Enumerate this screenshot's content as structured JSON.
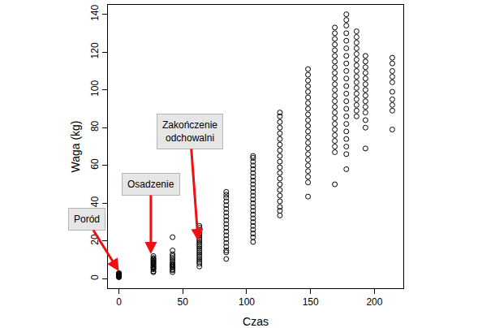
{
  "chart_data": {
    "type": "scatter",
    "x_label": "Czas",
    "y_label": "Waga (kg)",
    "color": "#000000",
    "marker": "open circle",
    "grid": false,
    "xlim": [
      -8.6,
      222.6
    ],
    "ylim": [
      -5,
      145
    ],
    "xticks": [
      0,
      50,
      100,
      150,
      200
    ],
    "yticks": [
      0,
      20,
      40,
      60,
      80,
      100,
      120,
      140
    ],
    "x": [
      0,
      0,
      0,
      0,
      0,
      0,
      0,
      0,
      0,
      0,
      0,
      0,
      27,
      27,
      27,
      27,
      27,
      27,
      27,
      27,
      27,
      27,
      27,
      27,
      27,
      27,
      27,
      27,
      42,
      42,
      42,
      42,
      42,
      42,
      42,
      42,
      42,
      42,
      42,
      42,
      42,
      42,
      42,
      63,
      63,
      63,
      63,
      63,
      63,
      63,
      63,
      63,
      63,
      63,
      63,
      63,
      63,
      63,
      63,
      63,
      63,
      63,
      63,
      63,
      63,
      84,
      84,
      84,
      84,
      84,
      84,
      84,
      84,
      84,
      84,
      84,
      84,
      84,
      84,
      84,
      84,
      84,
      84,
      84,
      105,
      105,
      105,
      105,
      105,
      105,
      105,
      105,
      105,
      105,
      105,
      105,
      105,
      105,
      105,
      105,
      105,
      105,
      105,
      105,
      105,
      105,
      105,
      105,
      126,
      126,
      126,
      126,
      126,
      126,
      126,
      126,
      126,
      126,
      126,
      126,
      126,
      126,
      126,
      126,
      126,
      126,
      126,
      126,
      148,
      148,
      148,
      148,
      148,
      148,
      148,
      148,
      148,
      148,
      148,
      148,
      148,
      148,
      148,
      148,
      148,
      148,
      148,
      148,
      148,
      148,
      169,
      169,
      169,
      169,
      169,
      169,
      169,
      169,
      169,
      169,
      169,
      169,
      169,
      169,
      169,
      169,
      169,
      169,
      169,
      169,
      169,
      169,
      169,
      169,
      178,
      178,
      178,
      178,
      178,
      178,
      178,
      178,
      178,
      178,
      178,
      178,
      178,
      178,
      178,
      178,
      178,
      178,
      178,
      178,
      178,
      186,
      186,
      186,
      186,
      186,
      186,
      186,
      186,
      186,
      186,
      186,
      186,
      186,
      186,
      186,
      186,
      193,
      193,
      193,
      193,
      193,
      193,
      193,
      193,
      193,
      193,
      193,
      193,
      193,
      193,
      214,
      214,
      214,
      214,
      214,
      214,
      214,
      214,
      214,
      214
    ],
    "values": [
      0.8,
      1.0,
      1.2,
      1.4,
      1.6,
      1.8,
      2.0,
      2.2,
      2.4,
      2.6,
      2.8,
      3.0,
      3.5,
      4,
      5,
      5.5,
      6,
      6.5,
      7,
      7.5,
      8,
      8.5,
      9,
      9.5,
      10,
      10.5,
      11,
      12,
      3.5,
      4.5,
      5,
      6,
      6.5,
      7,
      7.5,
      8,
      9,
      10,
      11,
      12,
      13,
      15,
      22,
      6.5,
      8,
      9,
      10,
      11,
      12,
      13,
      14,
      15,
      16,
      17,
      18,
      19,
      20,
      21,
      22,
      23,
      24,
      25,
      26,
      27,
      28,
      10.5,
      14,
      15,
      17,
      19,
      21,
      23,
      25,
      27,
      29,
      31,
      33,
      35,
      37,
      39,
      41,
      43,
      44.5,
      46,
      19.5,
      22,
      24,
      26,
      28,
      30,
      32,
      34,
      36,
      38,
      40,
      42,
      44,
      46,
      48,
      50,
      52,
      54,
      56,
      58,
      60,
      62,
      64,
      65,
      33.5,
      36,
      38,
      41,
      44,
      47,
      50,
      53,
      56,
      59,
      62,
      65,
      68,
      71,
      74,
      77,
      80,
      83,
      86,
      88,
      43.5,
      51,
      54,
      57,
      60,
      63,
      66,
      69,
      72,
      75,
      78,
      81,
      84,
      87,
      90,
      93,
      96,
      99,
      102,
      105,
      108,
      111,
      50,
      67,
      70,
      73,
      76,
      79,
      82,
      85,
      88,
      91,
      94,
      97,
      100,
      103,
      106,
      109,
      112,
      115,
      118,
      121,
      124,
      127,
      130,
      133,
      58,
      66,
      70,
      74,
      78,
      82,
      86,
      90,
      94,
      98,
      102,
      106,
      110,
      114,
      118,
      122,
      126,
      130,
      134,
      137,
      140,
      86,
      89,
      92,
      95,
      98,
      101,
      104,
      107,
      110,
      113,
      116,
      119,
      122,
      125,
      128,
      131,
      69,
      80,
      84,
      88,
      91,
      94,
      97,
      100,
      103,
      106,
      109,
      112,
      115,
      118,
      79,
      89,
      92,
      95,
      99,
      104,
      107,
      110,
      114,
      117
    ],
    "annotations": [
      {
        "text": "Poród",
        "x": 0,
        "y": 4
      },
      {
        "text": "Osadzenie",
        "x": 25,
        "y": 13
      },
      {
        "text": "Zakończenie\nodchowalni",
        "x": 62,
        "y": 20
      }
    ],
    "annotation_color": "#ee1111"
  }
}
